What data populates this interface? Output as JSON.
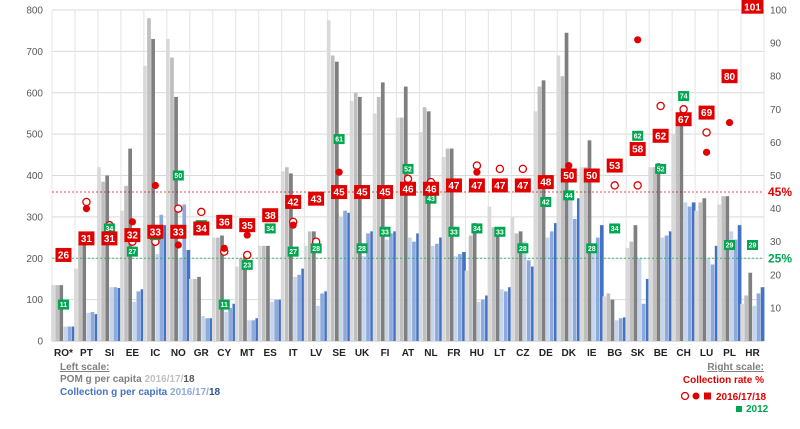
{
  "chart_data": {
    "type": "bar",
    "categories": [
      "RO*",
      "PT",
      "SI",
      "EE",
      "IC",
      "NO",
      "GR",
      "CY",
      "MT",
      "ES",
      "IT",
      "LV",
      "SE",
      "UK",
      "FI",
      "AT",
      "NL",
      "FR",
      "HU",
      "LT",
      "CZ",
      "DE",
      "DK",
      "IE",
      "BG",
      "SK",
      "BE",
      "CH",
      "LU",
      "PL",
      "HR"
    ],
    "left_axis": {
      "ylim": [
        0,
        800
      ],
      "ticks": [
        0,
        100,
        200,
        300,
        400,
        500,
        600,
        700,
        800
      ]
    },
    "right_axis": {
      "ylim": [
        0,
        100
      ],
      "ticks": [
        10,
        20,
        30,
        40,
        50,
        60,
        70,
        80,
        90,
        100
      ]
    },
    "series": [
      {
        "name": "POM g per capita 2016",
        "axis": "left",
        "color": "#d9d9d9",
        "values": [
          135,
          175,
          420,
          315,
          665,
          730,
          150,
          250,
          180,
          230,
          410,
          230,
          775,
          580,
          550,
          540,
          505,
          445,
          170,
          325,
          300,
          555,
          690,
          420,
          108,
          225,
          420,
          500,
          315,
          330,
          90
        ]
      },
      {
        "name": "POM g per capita 2017",
        "axis": "left",
        "color": "#bfbfbf",
        "values": [
          135,
          235,
          385,
          375,
          780,
          685,
          150,
          250,
          200,
          230,
          420,
          265,
          690,
          600,
          590,
          540,
          565,
          465,
          255,
          275,
          260,
          615,
          640,
          420,
          115,
          240,
          420,
          525,
          335,
          350,
          110
        ]
      },
      {
        "name": "POM g per capita 2018",
        "axis": "left",
        "color": "#7f7f7f",
        "values": [
          135,
          235,
          400,
          465,
          730,
          590,
          155,
          255,
          205,
          230,
          405,
          265,
          675,
          590,
          625,
          615,
          555,
          465,
          285,
          270,
          265,
          630,
          745,
          485,
          100,
          280,
          430,
          555,
          345,
          350,
          165
        ]
      },
      {
        "name": "Collection g per capita 2016",
        "axis": "left",
        "color": "#c6d4ec",
        "values": [
          35,
          68,
          130,
          95,
          210,
          200,
          60,
          70,
          50,
          95,
          155,
          85,
          300,
          205,
          245,
          250,
          230,
          205,
          95,
          125,
          240,
          250,
          340,
          220,
          50,
          200,
          250,
          335,
          200,
          265,
          85
        ]
      },
      {
        "name": "Collection g per capita 2017",
        "axis": "left",
        "color": "#8eaadb",
        "values": [
          35,
          70,
          130,
          120,
          305,
          330,
          55,
          80,
          50,
          100,
          160,
          115,
          315,
          260,
          260,
          240,
          235,
          210,
          100,
          120,
          195,
          265,
          295,
          250,
          55,
          90,
          255,
          325,
          185,
          245,
          115
        ]
      },
      {
        "name": "Collection g per capita 2018",
        "axis": "left",
        "color": "#4472c4",
        "values": [
          35,
          65,
          128,
          125,
          280,
          220,
          55,
          90,
          55,
          100,
          175,
          120,
          310,
          265,
          265,
          260,
          250,
          215,
          110,
          130,
          180,
          285,
          345,
          280,
          57,
          150,
          265,
          335,
          230,
          280,
          130
        ]
      },
      {
        "name": "Collection rate % 2016",
        "axis": "right",
        "marker": "open-circle",
        "color": "#e00000",
        "values": [
          null,
          42,
          35,
          30,
          30,
          40,
          39,
          27,
          26,
          null,
          36,
          30,
          null,
          null,
          null,
          49,
          48,
          null,
          53,
          52,
          52,
          null,
          51,
          null,
          47,
          47,
          71,
          70,
          63,
          null,
          null
        ]
      },
      {
        "name": "Collection rate % 2017",
        "axis": "right",
        "marker": "filled-circle",
        "color": "#e00000",
        "values": [
          null,
          40,
          34,
          36,
          47,
          29,
          null,
          28,
          32,
          null,
          35,
          null,
          51,
          null,
          null,
          null,
          null,
          null,
          51,
          null,
          null,
          null,
          53,
          null,
          null,
          91,
          null,
          null,
          57,
          66,
          null
        ]
      },
      {
        "name": "Collection rate % 2018",
        "axis": "right",
        "marker": "filled-square",
        "color": "#e00000",
        "values": [
          26,
          31,
          31,
          32,
          33,
          33,
          34,
          36,
          35,
          38,
          42,
          43,
          45,
          45,
          45,
          46,
          46,
          47,
          47,
          47,
          47,
          48,
          50,
          50,
          53,
          58,
          62,
          67,
          69,
          80,
          101
        ]
      },
      {
        "name": "Collection rate % 2012",
        "axis": "right",
        "marker": "small-square",
        "color": "#00a650",
        "values": [
          11,
          null,
          34,
          27,
          32,
          50,
          35,
          11,
          23,
          34,
          27,
          28,
          61,
          28,
          33,
          52,
          43,
          33,
          34,
          33,
          28,
          42,
          44,
          28,
          34,
          62,
          52,
          74,
          null,
          29,
          29
        ]
      }
    ],
    "reference_lines": [
      {
        "value": 45,
        "label": "45%",
        "color": "#e00000"
      },
      {
        "value": 25,
        "label": "25%",
        "color": "#00a650"
      }
    ],
    "legend": {
      "left_scale": "Left scale:",
      "pom_text": "POM g per capita",
      "pom_years_a": "2016/17/",
      "pom_years_b": "18",
      "col_text": "Collection g per capita",
      "col_years_a": "2016/17/",
      "col_years_b": "18",
      "right_scale": "Right scale:",
      "rate_title": "Collection rate %",
      "rate_years_a": "2016/17/",
      "rate_years_b": "18",
      "year_2012": "2012"
    }
  }
}
